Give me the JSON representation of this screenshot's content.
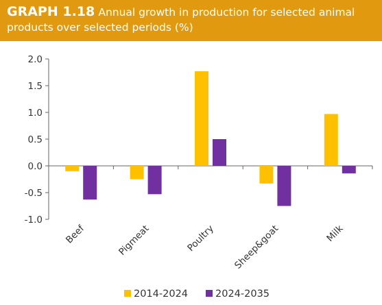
{
  "header": {
    "graph_number": "GRAPH 1.18",
    "title": "Annual growth in production for selected animal products over selected periods (%)",
    "background_color": "#E19A0F"
  },
  "chart_data": {
    "type": "bar",
    "categories": [
      "Beef",
      "Pigmeat",
      "Poultry",
      "Sheep&goat",
      "Milk"
    ],
    "series": [
      {
        "name": "2014-2024",
        "color": "#FFC000",
        "values": [
          -0.1,
          -0.25,
          1.77,
          -0.33,
          0.97
        ]
      },
      {
        "name": "2024-2035",
        "color": "#7030A0",
        "values": [
          -0.63,
          -0.53,
          0.5,
          -0.75,
          -0.14
        ]
      }
    ],
    "yticks": [
      "2.0",
      "1.5",
      "1.0",
      "0.5",
      "0.0",
      "-0.5",
      "-1.0"
    ],
    "ylim": [
      -1.0,
      2.0
    ],
    "grid": false,
    "legend_position": "bottom"
  }
}
